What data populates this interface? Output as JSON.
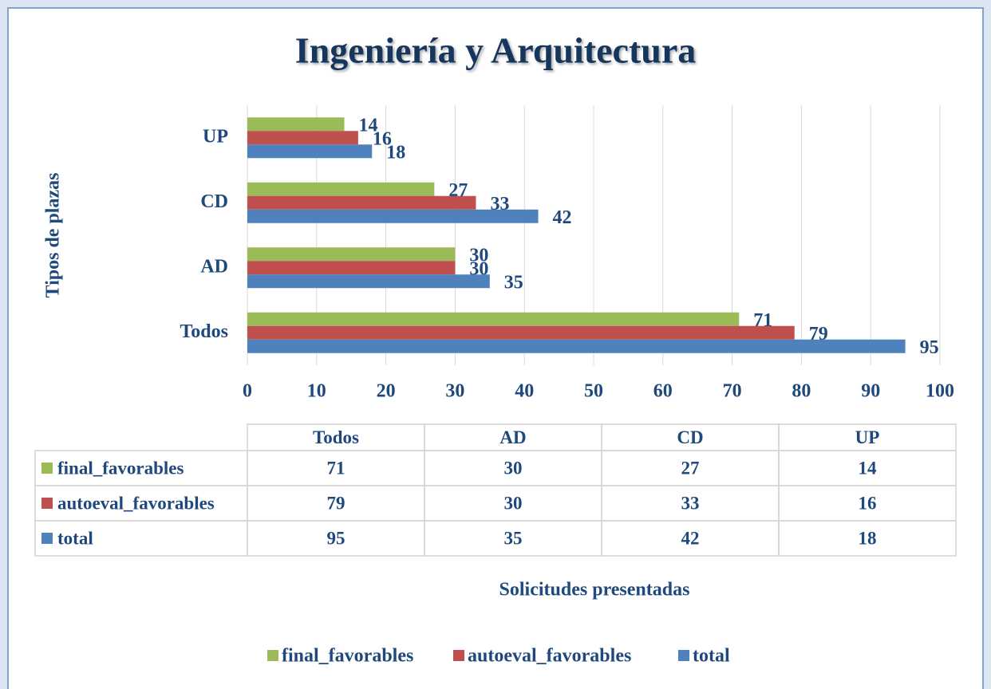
{
  "chart_data": {
    "type": "bar",
    "title": "Ingeniería y Arquitectura",
    "x_label": "Solicitudes presentadas",
    "y_label": "Tipos de plazas",
    "categories": [
      "Todos",
      "AD",
      "CD",
      "UP"
    ],
    "series": [
      {
        "name": "final_favorables",
        "color": "#9bbb59",
        "values": [
          71,
          30,
          27,
          14
        ]
      },
      {
        "name": "autoeval_favorables",
        "color": "#c0504d",
        "values": [
          79,
          30,
          33,
          16
        ]
      },
      {
        "name": "total",
        "color": "#4f81bd",
        "values": [
          95,
          35,
          42,
          18
        ]
      }
    ],
    "xlim": [
      0,
      100
    ],
    "xticks": [
      0,
      10,
      20,
      30,
      40,
      50,
      60,
      70,
      80,
      90,
      100
    ],
    "grid": true,
    "legend": "bottom",
    "data_table": true
  }
}
